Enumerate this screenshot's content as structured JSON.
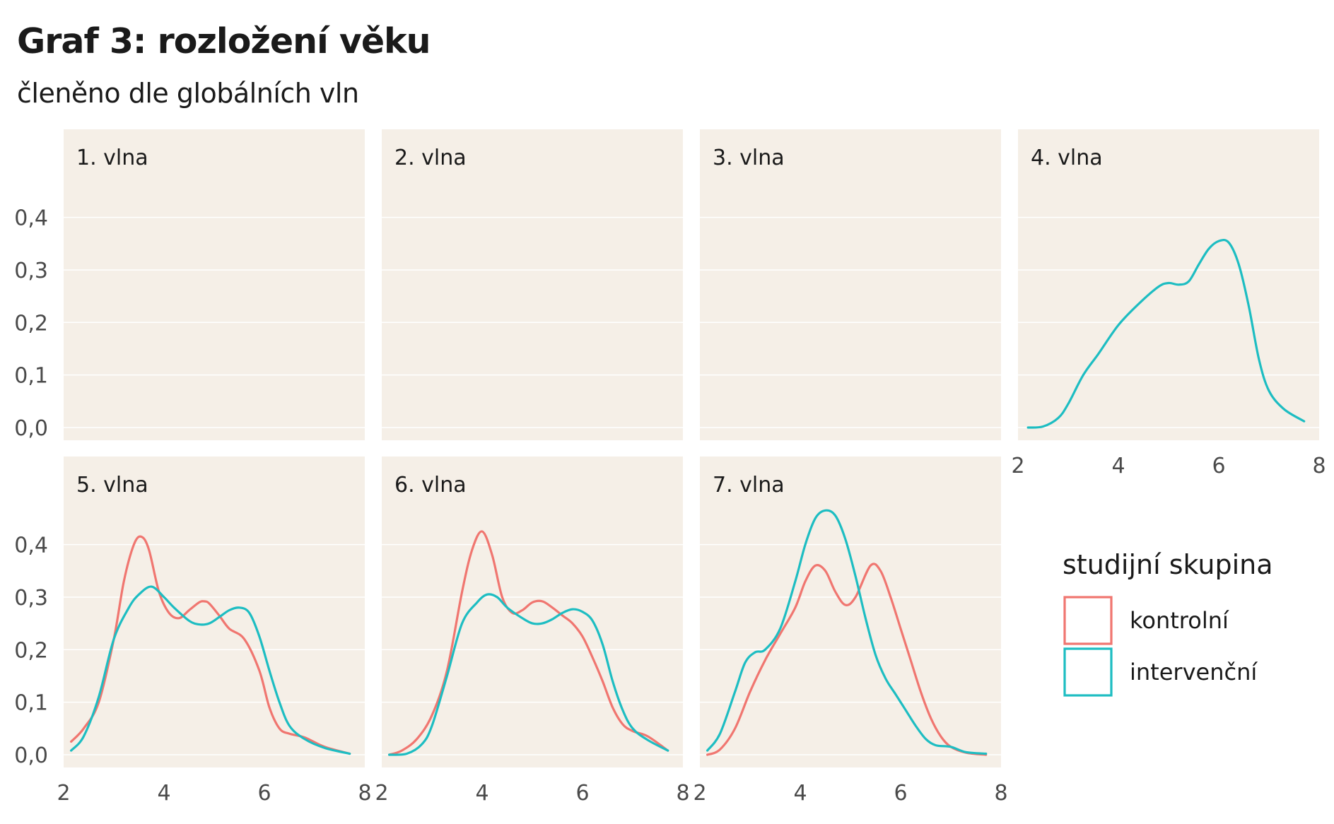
{
  "title": "Graf 3: rozložení věku",
  "subtitle": "členěno dle globálních vln",
  "colors": {
    "kontrolni": "#f07670",
    "intervencni": "#1dbdc2"
  },
  "chart_data": {
    "type": "line",
    "facet_layout": "4 columns × 2 rows, shared axes",
    "xlim": [
      2,
      8
    ],
    "ylim": [
      0,
      0.46
    ],
    "x_ticks": [
      2,
      4,
      6,
      8
    ],
    "x_tick_labels": [
      "2",
      "4",
      "6",
      "8"
    ],
    "y_ticks": [
      0.0,
      0.1,
      0.2,
      0.3,
      0.4
    ],
    "y_tick_labels": [
      "0,0",
      "0,1",
      "0,2",
      "0,3",
      "0,4"
    ],
    "legend": {
      "title": "studijní skupina",
      "position": "right",
      "entries": [
        {
          "key": "kontrolni",
          "label": "kontrolní",
          "color": "#f07670"
        },
        {
          "key": "intervencni",
          "label": "intervenční",
          "color": "#1dbdc2"
        }
      ]
    },
    "panels": [
      {
        "label": "1. vlna",
        "series": []
      },
      {
        "label": "2. vlna",
        "series": []
      },
      {
        "label": "3. vlna",
        "series": []
      },
      {
        "label": "4. vlna",
        "series": [
          {
            "group": "intervencni",
            "color": "#1dbdc2",
            "x": [
              2.2,
              2.5,
              2.8,
              3.0,
              3.3,
              3.6,
              4.0,
              4.4,
              4.8,
              5.0,
              5.2,
              5.4,
              5.6,
              5.8,
              6.0,
              6.2,
              6.4,
              6.6,
              6.8,
              7.0,
              7.3,
              7.7
            ],
            "y": [
              0.0,
              0.002,
              0.018,
              0.045,
              0.1,
              0.14,
              0.195,
              0.235,
              0.268,
              0.275,
              0.272,
              0.278,
              0.31,
              0.34,
              0.355,
              0.352,
              0.31,
              0.23,
              0.13,
              0.07,
              0.035,
              0.012
            ]
          }
        ]
      },
      {
        "label": "5. vlna",
        "series": [
          {
            "group": "kontrolni",
            "color": "#f07670",
            "x": [
              2.15,
              2.4,
              2.7,
              3.0,
              3.2,
              3.4,
              3.55,
              3.7,
              3.9,
              4.1,
              4.3,
              4.5,
              4.7,
              4.8,
              4.9,
              5.1,
              5.3,
              5.6,
              5.9,
              6.1,
              6.3,
              6.5,
              6.8,
              7.2,
              7.7
            ],
            "y": [
              0.025,
              0.05,
              0.1,
              0.22,
              0.33,
              0.4,
              0.415,
              0.39,
              0.31,
              0.27,
              0.26,
              0.275,
              0.29,
              0.292,
              0.288,
              0.265,
              0.24,
              0.22,
              0.16,
              0.09,
              0.05,
              0.04,
              0.033,
              0.015,
              0.002
            ]
          },
          {
            "group": "intervencni",
            "color": "#1dbdc2",
            "x": [
              2.15,
              2.4,
              2.7,
              3.0,
              3.3,
              3.5,
              3.75,
              4.0,
              4.2,
              4.5,
              4.7,
              4.9,
              5.1,
              5.3,
              5.5,
              5.7,
              5.9,
              6.1,
              6.3,
              6.5,
              6.8,
              7.2,
              7.7
            ],
            "y": [
              0.008,
              0.035,
              0.11,
              0.22,
              0.28,
              0.305,
              0.32,
              0.3,
              0.28,
              0.255,
              0.248,
              0.25,
              0.262,
              0.275,
              0.28,
              0.27,
              0.225,
              0.16,
              0.1,
              0.055,
              0.03,
              0.013,
              0.002
            ]
          }
        ]
      },
      {
        "label": "6. vlna",
        "series": [
          {
            "group": "kontrolni",
            "color": "#f07670",
            "x": [
              2.15,
              2.4,
              2.7,
              3.0,
              3.3,
              3.6,
              3.8,
              4.0,
              4.2,
              4.4,
              4.6,
              4.8,
              5.0,
              5.2,
              5.4,
              5.6,
              5.8,
              6.0,
              6.2,
              6.4,
              6.6,
              6.8,
              7.0,
              7.3,
              7.7
            ],
            "y": [
              0.0,
              0.008,
              0.03,
              0.075,
              0.16,
              0.31,
              0.39,
              0.425,
              0.38,
              0.3,
              0.27,
              0.275,
              0.29,
              0.292,
              0.28,
              0.265,
              0.25,
              0.225,
              0.185,
              0.14,
              0.09,
              0.058,
              0.045,
              0.035,
              0.008
            ]
          },
          {
            "group": "intervencni",
            "color": "#1dbdc2",
            "x": [
              2.15,
              2.5,
              2.8,
              3.0,
              3.3,
              3.6,
              3.9,
              4.1,
              4.3,
              4.5,
              4.8,
              5.0,
              5.2,
              5.4,
              5.6,
              5.8,
              6.0,
              6.2,
              6.4,
              6.6,
              6.8,
              7.0,
              7.3,
              7.7
            ],
            "y": [
              0.0,
              0.002,
              0.02,
              0.055,
              0.15,
              0.25,
              0.29,
              0.305,
              0.3,
              0.28,
              0.26,
              0.25,
              0.25,
              0.258,
              0.27,
              0.277,
              0.272,
              0.255,
              0.21,
              0.14,
              0.085,
              0.05,
              0.028,
              0.008
            ]
          }
        ]
      },
      {
        "label": "7. vlna",
        "series": [
          {
            "group": "kontrolni",
            "color": "#f07670",
            "x": [
              2.15,
              2.4,
              2.7,
              3.0,
              3.3,
              3.6,
              3.9,
              4.1,
              4.3,
              4.5,
              4.7,
              4.9,
              5.1,
              5.4,
              5.6,
              5.8,
              6.0,
              6.2,
              6.4,
              6.6,
              6.8,
              7.0,
              7.3,
              7.7
            ],
            "y": [
              0.0,
              0.01,
              0.05,
              0.12,
              0.18,
              0.23,
              0.28,
              0.33,
              0.36,
              0.35,
              0.31,
              0.285,
              0.3,
              0.36,
              0.35,
              0.3,
              0.24,
              0.18,
              0.12,
              0.07,
              0.035,
              0.015,
              0.004,
              0.0
            ]
          },
          {
            "group": "intervencni",
            "color": "#1dbdc2",
            "x": [
              2.15,
              2.4,
              2.7,
              2.9,
              3.1,
              3.3,
              3.6,
              3.9,
              4.1,
              4.3,
              4.5,
              4.7,
              4.9,
              5.1,
              5.3,
              5.5,
              5.7,
              5.9,
              6.1,
              6.3,
              6.5,
              6.7,
              7.0,
              7.3,
              7.7
            ],
            "y": [
              0.008,
              0.04,
              0.12,
              0.175,
              0.195,
              0.2,
              0.24,
              0.33,
              0.4,
              0.45,
              0.465,
              0.455,
              0.41,
              0.34,
              0.26,
              0.19,
              0.145,
              0.115,
              0.085,
              0.055,
              0.03,
              0.018,
              0.015,
              0.005,
              0.002
            ]
          }
        ]
      }
    ]
  }
}
